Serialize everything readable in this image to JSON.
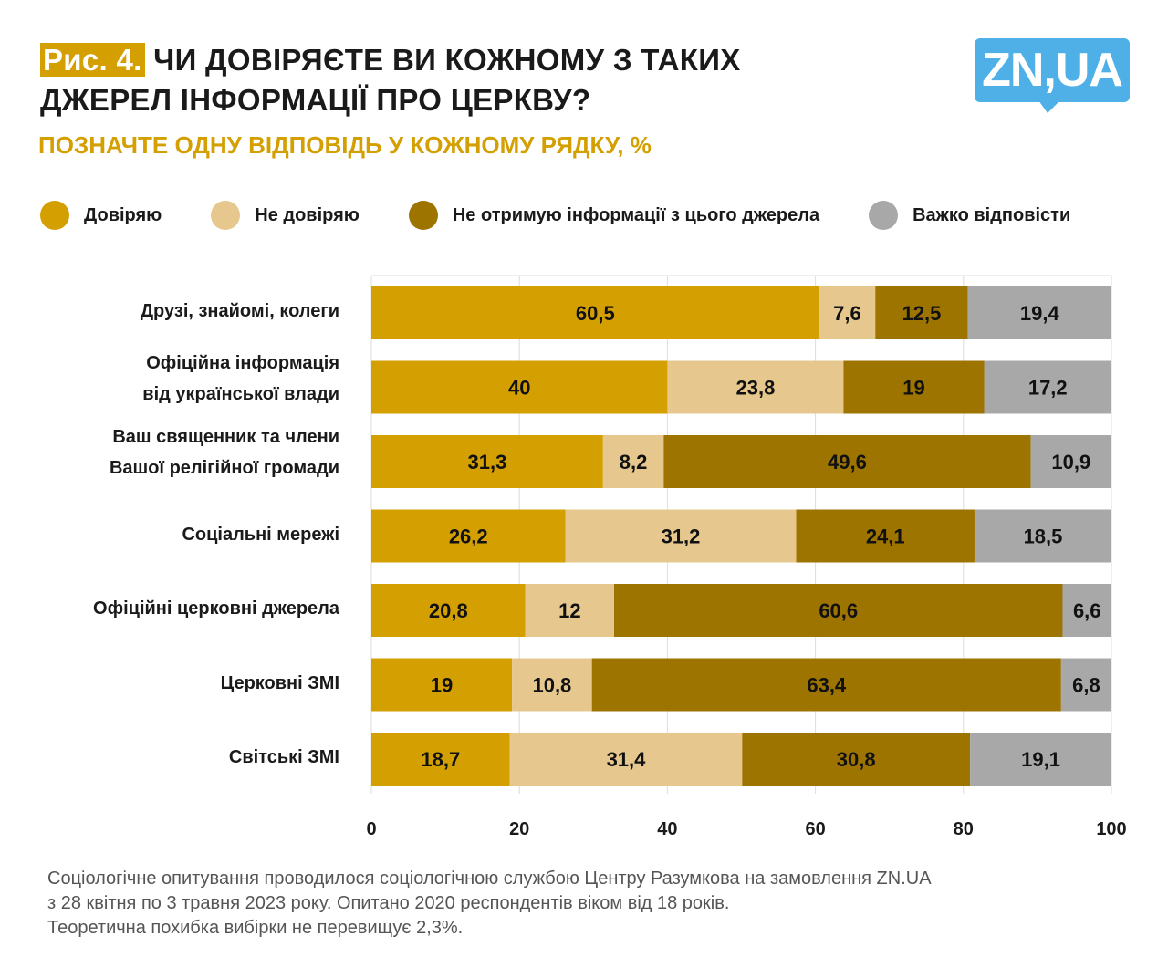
{
  "title": {
    "fig_label": "Рис. 4.",
    "text_line1": "ЧИ ДОВІРЯЄТЕ ВИ КОЖНОМУ З ТАКИХ",
    "text_line2": "ДЖЕРЕЛ ІНФОРМАЦІЇ ПРО ЦЕРКВУ?"
  },
  "subtitle": "ПОЗНАЧТЕ ОДНУ ВІДПОВІДЬ У КОЖНОМУ РЯДКУ, %",
  "logo": "ZN,UA",
  "footnote": [
    "Соціологічне опитування проводилося соціологічною службою Центру Разумкова на замовлення ZN.UA",
    "з 28 квітня по 3 травня 2023 року. Опитано 2020 респондентів віком від 18 років.",
    "Теоретична похибка вибірки не перевищує 2,3%."
  ],
  "chart_data": {
    "type": "bar",
    "orientation": "horizontal",
    "stacked": true,
    "xlim": [
      0,
      100
    ],
    "xticks": [
      "0",
      "20",
      "40",
      "60",
      "80",
      "100"
    ],
    "grid": true,
    "legend_position": "top",
    "categories": [
      [
        "Друзі, знайомі, колеги"
      ],
      [
        "Офіційна інформація",
        "від української влади"
      ],
      [
        "Ваш священник та члени",
        "Вашої релігійної громади"
      ],
      [
        "Соціальні мережі"
      ],
      [
        "Офіційні церковні джерела"
      ],
      [
        "Церковні ЗМІ"
      ],
      [
        "Світські ЗМІ"
      ]
    ],
    "series": [
      {
        "name": "Довіряю",
        "color": "#d49f00",
        "values": [
          60.5,
          40,
          31.3,
          26.2,
          20.8,
          19,
          18.7
        ]
      },
      {
        "name": "Не довіряю",
        "color": "#e6c88e",
        "values": [
          7.6,
          23.8,
          8.2,
          31.2,
          12,
          10.8,
          31.4
        ]
      },
      {
        "name": "Не отримую інформації з цього джерела",
        "color": "#9e7400",
        "values": [
          12.5,
          19,
          49.6,
          24.1,
          60.6,
          63.4,
          30.8
        ]
      },
      {
        "name": "Важко відповісти",
        "color": "#a8a8a8",
        "values": [
          19.4,
          17.2,
          10.9,
          18.5,
          6.6,
          6.8,
          19.1
        ]
      }
    ]
  }
}
